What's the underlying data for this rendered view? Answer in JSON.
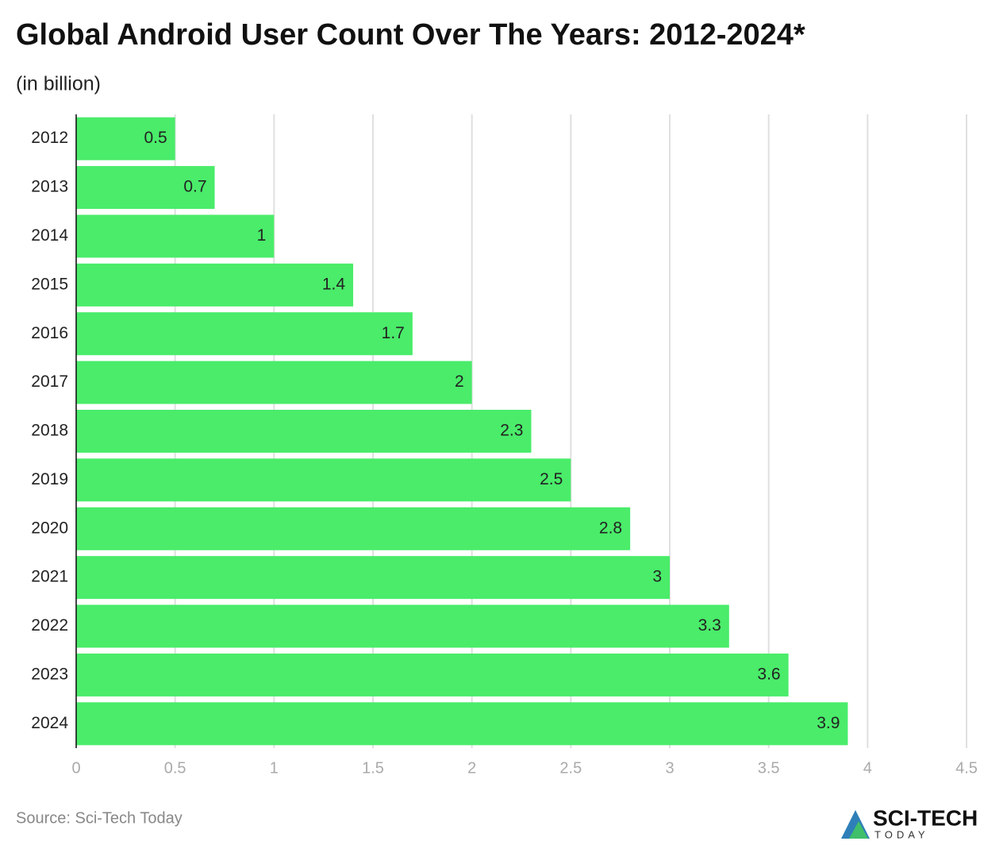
{
  "chart_data": {
    "type": "bar",
    "title": "Global Android User Count Over The Years: 2012-2024*",
    "subtitle": "(in billion)",
    "categories": [
      "2012",
      "2013",
      "2014",
      "2015",
      "2016",
      "2017",
      "2018",
      "2019",
      "2020",
      "2021",
      "2022",
      "2023",
      "2024"
    ],
    "values": [
      0.5,
      0.7,
      1,
      1.4,
      1.7,
      2,
      2.3,
      2.5,
      2.8,
      3,
      3.3,
      3.6,
      3.9
    ],
    "color": "#4aec6a",
    "xlim": [
      0,
      4.5
    ],
    "xticks": [
      0,
      0.5,
      1,
      1.5,
      2,
      2.5,
      3,
      3.5,
      4,
      4.5
    ],
    "grid": true,
    "source": "Source: Sci-Tech Today"
  },
  "logo": {
    "name": "SCI-TECH",
    "tagline": "TODAY"
  }
}
